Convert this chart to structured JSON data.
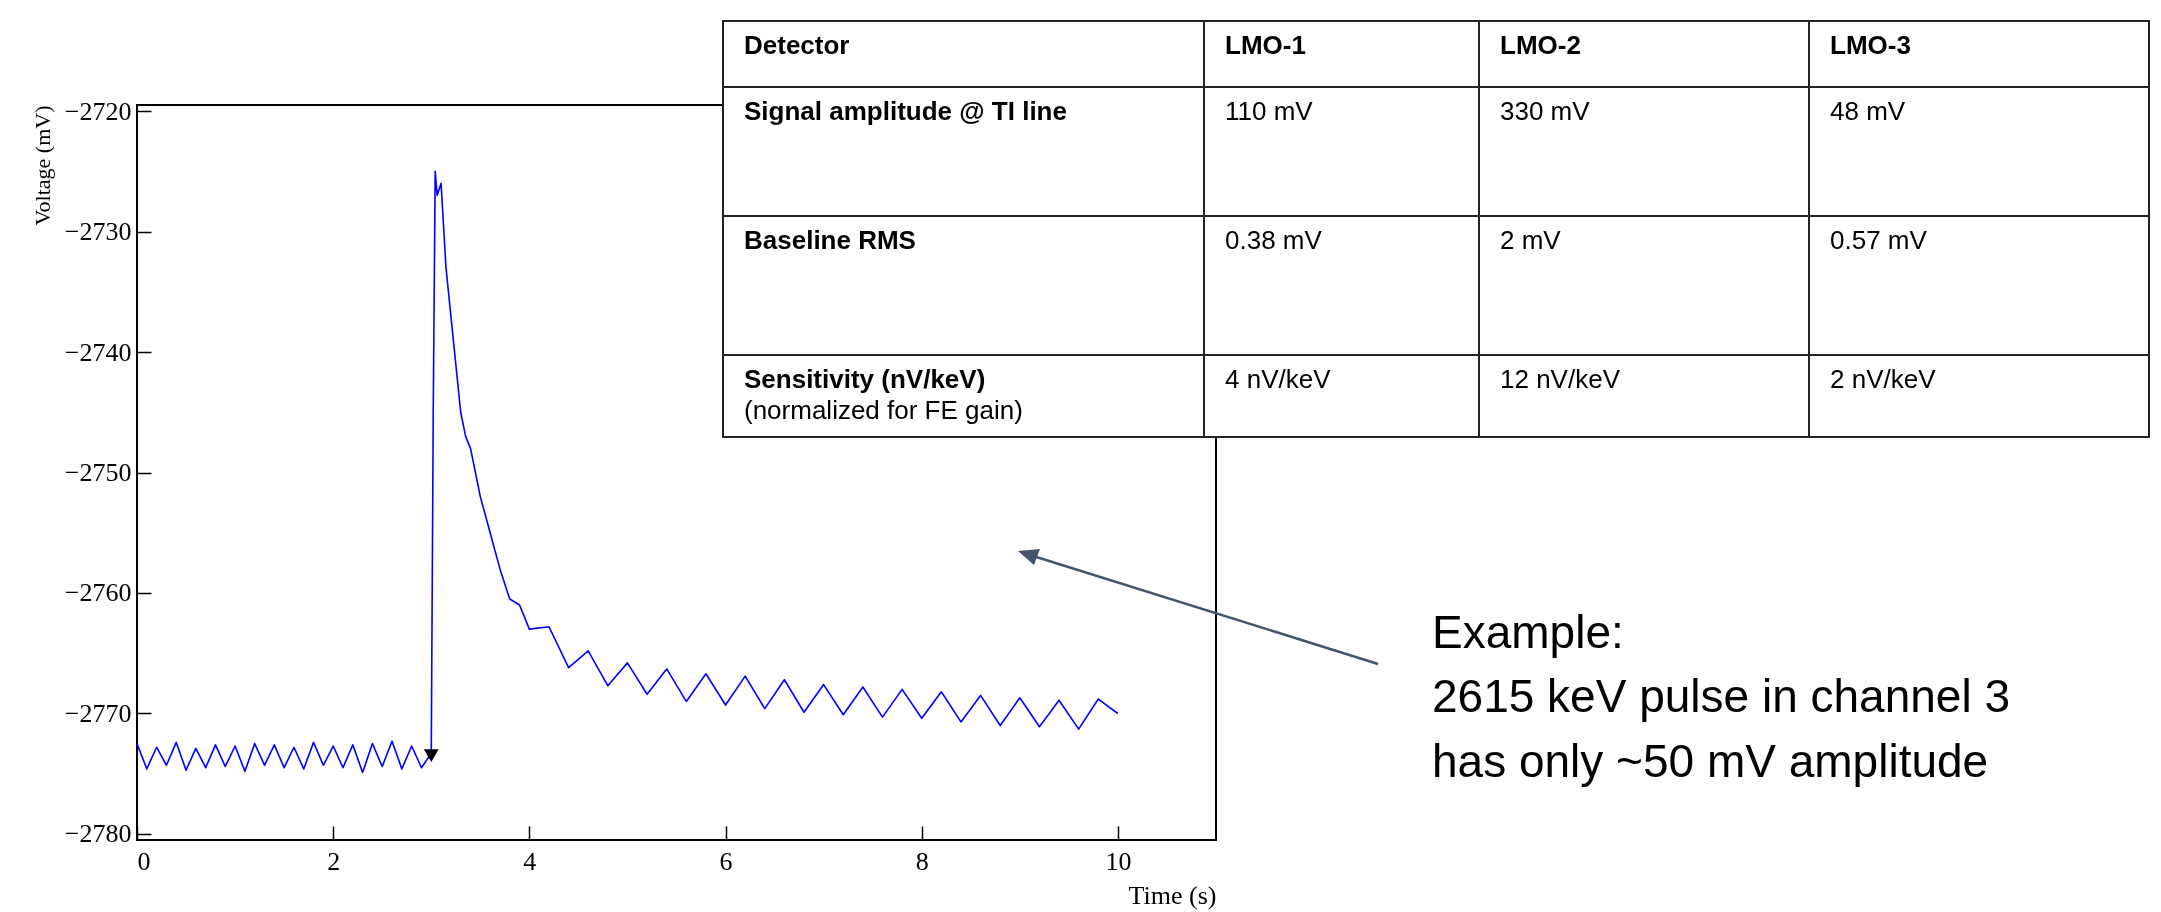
{
  "chart_data": [
    {
      "type": "line",
      "xlabel": "Time (s)",
      "ylabel": "Voltage (mV)",
      "xlim": [
        0,
        11
      ],
      "ylim": [
        -2780.5,
        -2719.5
      ],
      "xticks": [
        0,
        2,
        4,
        6,
        8,
        10
      ],
      "yticks": [
        -2780,
        -2770,
        -2760,
        -2750,
        -2740,
        -2730,
        -2720
      ],
      "marker": "none",
      "line_style": "solid",
      "series": [
        {
          "color": "#0000ff",
          "x": [
            0,
            0.1,
            0.2,
            0.3,
            0.4,
            0.5,
            0.6,
            0.7,
            0.8,
            0.9,
            1.0,
            1.1,
            1.2,
            1.3,
            1.4,
            1.5,
            1.6,
            1.7,
            1.8,
            1.9,
            2.0,
            2.1,
            2.2,
            2.3,
            2.4,
            2.5,
            2.6,
            2.7,
            2.8,
            2.9,
            3.0,
            3.02,
            3.04,
            3.06,
            3.1,
            3.15,
            3.2,
            3.25,
            3.3,
            3.35,
            3.4,
            3.5,
            3.6,
            3.7,
            3.8,
            3.9,
            4.0,
            4.2,
            4.4,
            4.6,
            4.8,
            5.0,
            5.2,
            5.4,
            5.6,
            5.8,
            6.0,
            6.2,
            6.4,
            6.6,
            6.8,
            7.0,
            7.2,
            7.4,
            7.6,
            7.8,
            8.0,
            8.2,
            8.4,
            8.6,
            8.8,
            9.0,
            9.2,
            9.4,
            9.6,
            9.8,
            10.0
          ],
          "values": [
            -2772.5,
            -2774.6,
            -2772.8,
            -2774.3,
            -2772.4,
            -2774.7,
            -2772.9,
            -2774.5,
            -2772.6,
            -2774.4,
            -2772.7,
            -2774.8,
            -2772.5,
            -2774.3,
            -2772.6,
            -2774.5,
            -2772.8,
            -2774.6,
            -2772.4,
            -2774.3,
            -2772.7,
            -2774.5,
            -2772.6,
            -2774.9,
            -2772.5,
            -2774.4,
            -2772.3,
            -2774.6,
            -2772.7,
            -2774.5,
            -2773.3,
            -2745,
            -2725,
            -2727,
            -2726,
            -2733,
            -2737,
            -2741,
            -2745,
            -2747,
            -2748,
            -2752,
            -2755,
            -2758,
            -2760.5,
            -2761,
            -2763,
            -2762.8,
            -2766.2,
            -2764.8,
            -2767.7,
            -2765.8,
            -2768.4,
            -2766.3,
            -2769,
            -2766.7,
            -2769.3,
            -2766.9,
            -2769.6,
            -2767.2,
            -2769.9,
            -2767.6,
            -2770.1,
            -2767.8,
            -2770.3,
            -2768,
            -2770.4,
            -2768.2,
            -2770.7,
            -2768.5,
            -2771,
            -2768.7,
            -2771.1,
            -2768.9,
            -2771.3,
            -2768.8,
            -2770
          ]
        },
        {
          "type": "scatter",
          "color": "#000000",
          "marker": "triangle",
          "x": [
            3.0
          ],
          "values": [
            -2773.5
          ]
        }
      ],
      "annotations": [
        "Example:\n2615 keV pulse in channel 3\nhas only ~50 mV amplitude"
      ]
    },
    {
      "type": "other",
      "annotations": [
        "Detector",
        "LMO-1",
        "LMO-2",
        "LMO-3",
        "Signal amplitude @ TI line",
        "110 mV",
        "330 mV",
        "48 mV",
        "Baseline RMS",
        "0.38 mV",
        "2 mV",
        "0.57 mV",
        "Sensitivity (nV/keV)\n(normalized for FE gain)",
        "4 nV/keV",
        "12 nV/keV",
        "2 nV/keV"
      ]
    }
  ]
}
